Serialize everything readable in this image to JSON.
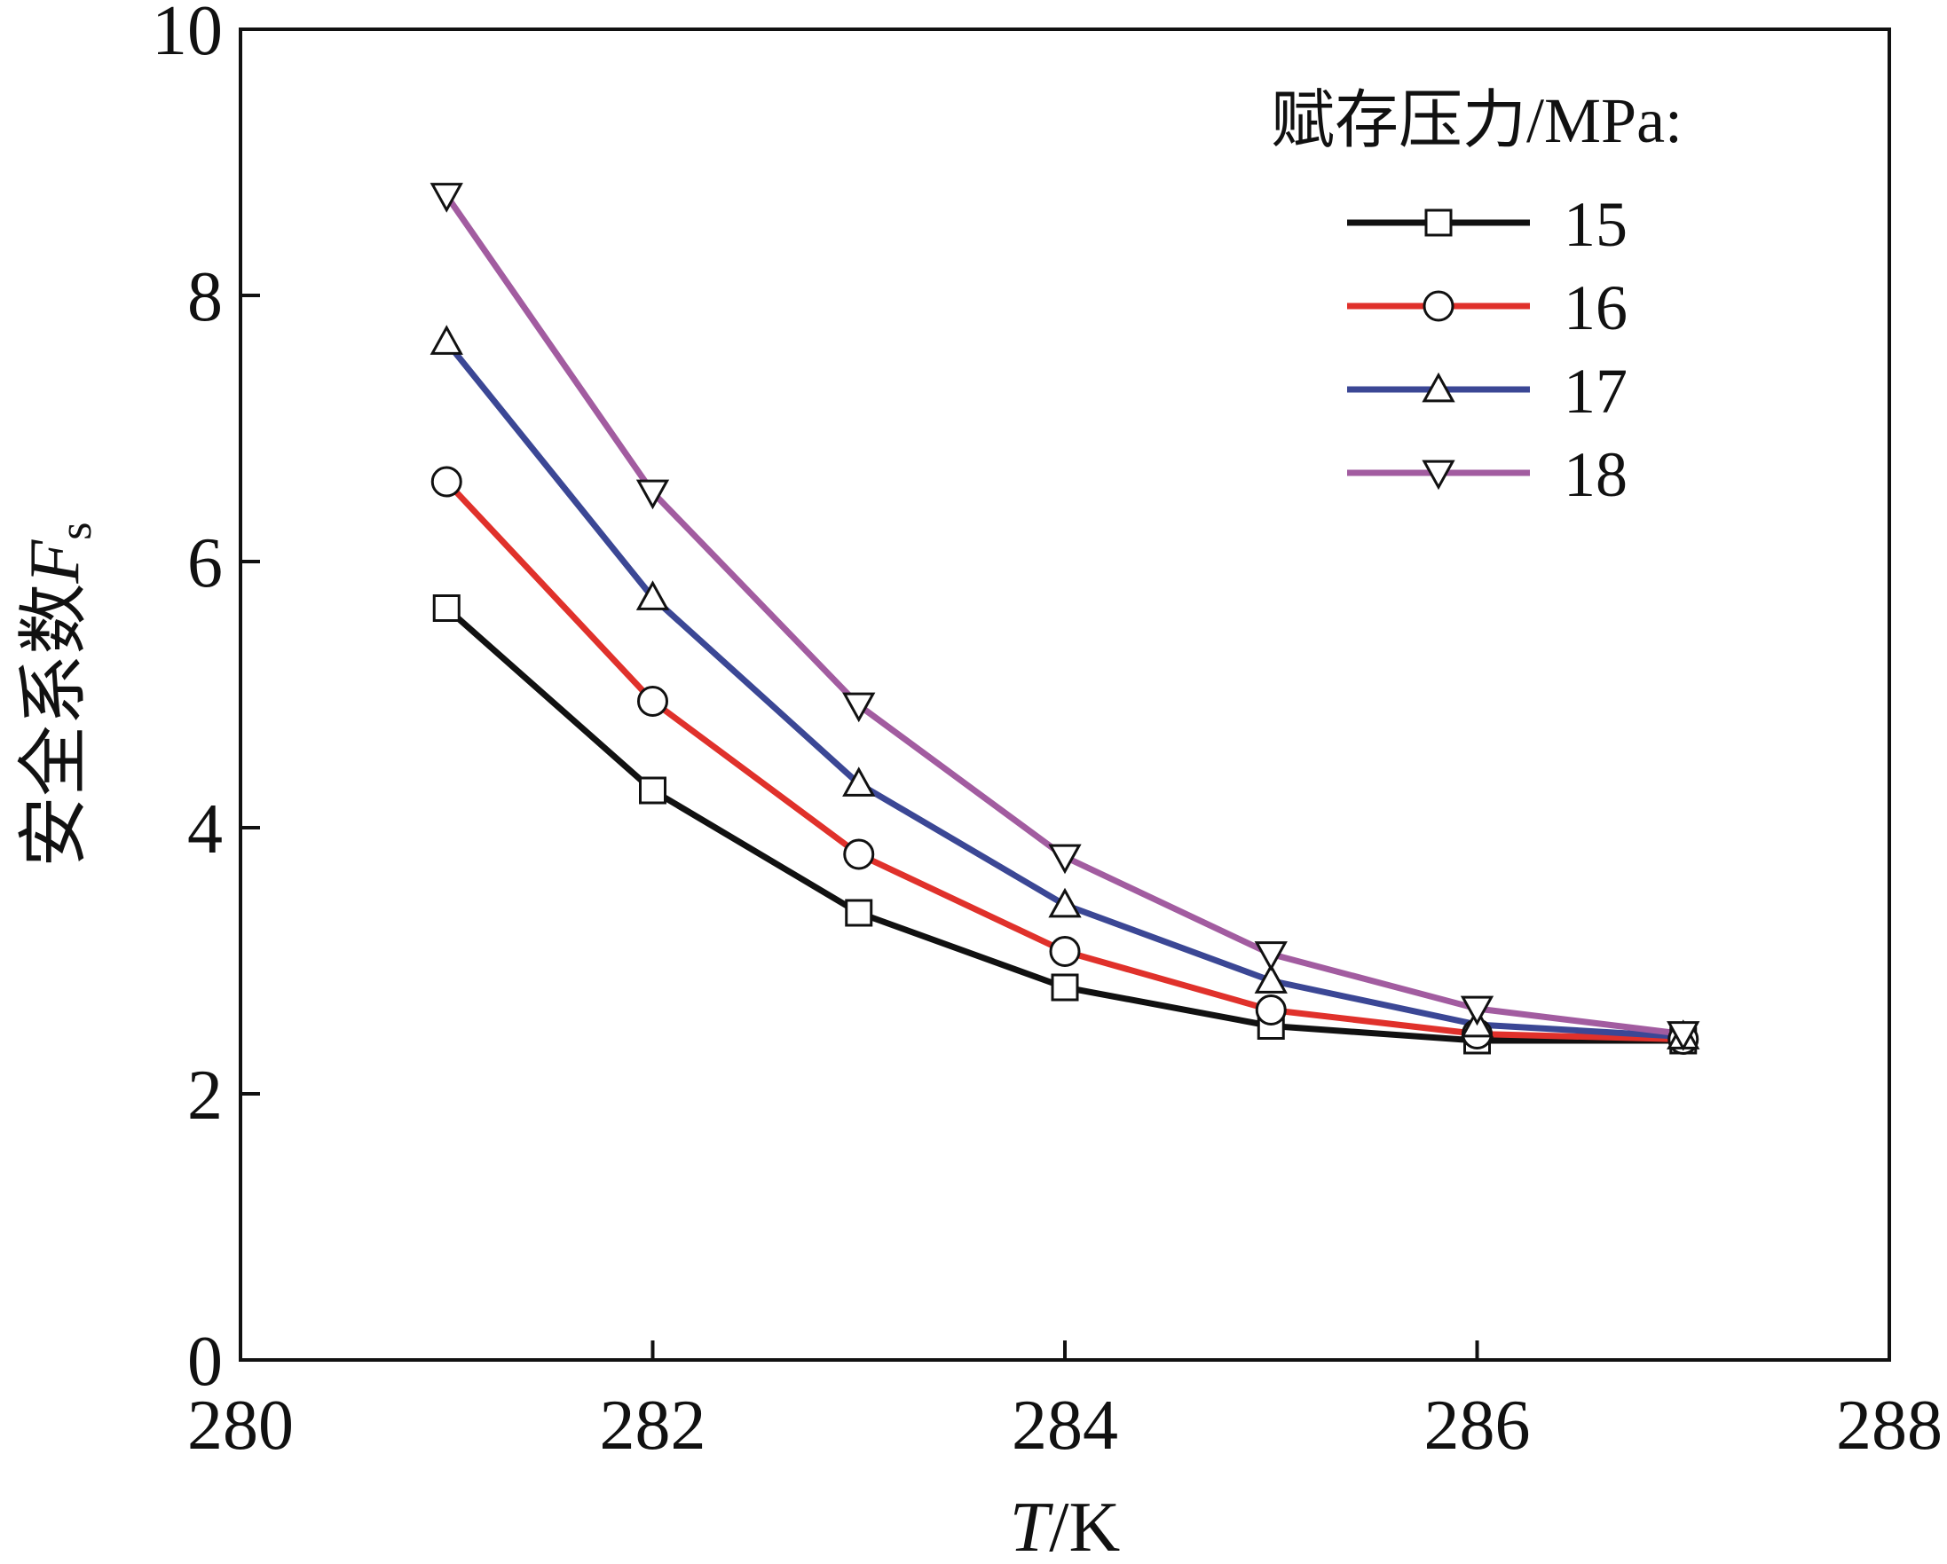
{
  "chart_data": {
    "type": "line",
    "title": "",
    "xlabel_italic": "T",
    "xlabel_rest": "/K",
    "ylabel_main": "安全系数",
    "ylabel_var": "F",
    "ylabel_sub": "s",
    "xlim": [
      280,
      288
    ],
    "ylim": [
      0,
      10
    ],
    "xticks": [
      280,
      282,
      284,
      286,
      288
    ],
    "yticks": [
      0,
      2,
      4,
      6,
      8,
      10
    ],
    "grid": false,
    "legend_position": "top-right",
    "legend_title": "赋存压力/MPa:",
    "x": [
      281,
      282,
      283,
      284,
      285,
      286,
      287
    ],
    "series": [
      {
        "name": "15",
        "color": "#111111",
        "marker": "square",
        "values": [
          5.65,
          4.28,
          3.36,
          2.8,
          2.51,
          2.4,
          2.4
        ]
      },
      {
        "name": "16",
        "color": "#e0312b",
        "marker": "circle",
        "values": [
          6.6,
          4.95,
          3.8,
          3.07,
          2.63,
          2.45,
          2.41
        ]
      },
      {
        "name": "17",
        "color": "#3b4795",
        "marker": "triangle-up",
        "values": [
          7.65,
          5.73,
          4.33,
          3.42,
          2.85,
          2.52,
          2.43
        ]
      },
      {
        "name": "18",
        "color": "#a25ca0",
        "marker": "triangle-down",
        "values": [
          8.75,
          6.52,
          4.92,
          3.78,
          3.05,
          2.64,
          2.45
        ]
      }
    ]
  }
}
